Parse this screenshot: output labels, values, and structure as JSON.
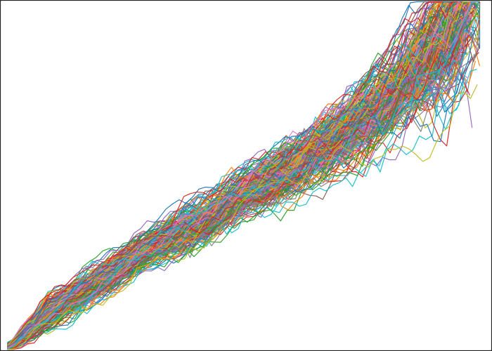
{
  "chart_data": {
    "type": "line",
    "title": "",
    "xlabel": "",
    "ylabel": "",
    "xlim": [
      0,
      1
    ],
    "ylim": [
      0,
      1
    ],
    "grid": false,
    "legend": "none",
    "axes_visible": false,
    "series_count": 240,
    "points_per_series": 70,
    "envelope": {
      "x": [
        0.02,
        0.1,
        0.2,
        0.3,
        0.4,
        0.5,
        0.6,
        0.7,
        0.8,
        0.86,
        0.92,
        0.96
      ],
      "y_center": [
        0.01,
        0.11,
        0.2,
        0.29,
        0.36,
        0.45,
        0.53,
        0.62,
        0.73,
        0.82,
        0.9,
        0.98
      ],
      "y_spread": [
        0.01,
        0.03,
        0.03,
        0.03,
        0.04,
        0.04,
        0.05,
        0.06,
        0.07,
        0.09,
        0.11,
        0.12
      ]
    },
    "colors": [
      "#1f77b4",
      "#ff7f0e",
      "#2ca02c",
      "#d62728",
      "#9467bd",
      "#8c564b",
      "#e377c2",
      "#7f7f7f",
      "#bcbd22",
      "#17becf"
    ]
  }
}
